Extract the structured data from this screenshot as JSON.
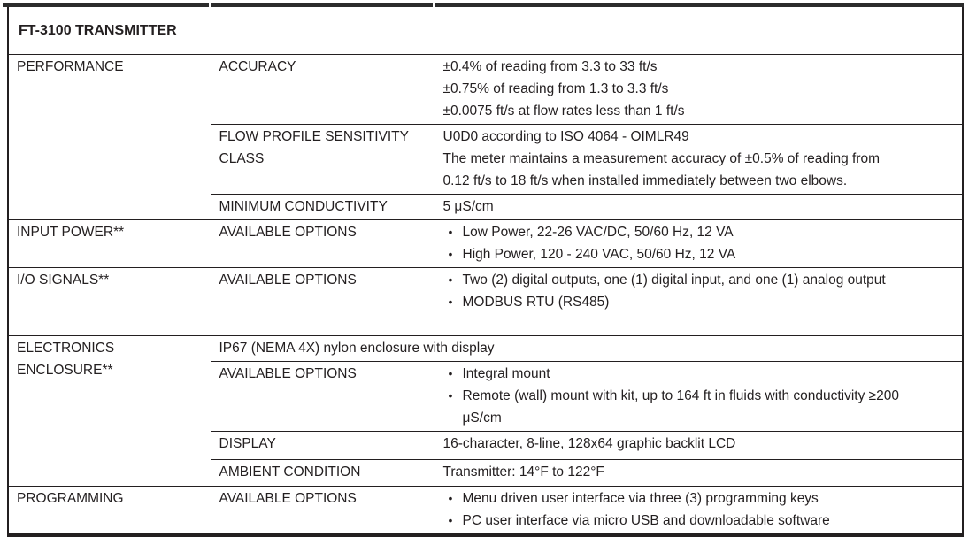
{
  "colors": {
    "border": "#231f20",
    "text": "#231f20",
    "crop_bar": "#2c2c2c",
    "background": "#ffffff"
  },
  "table": {
    "title": "FT-3100 TRANSMITTER",
    "performance": {
      "label": "PERFORMANCE",
      "accuracy": {
        "label": "ACCURACY",
        "line1": "±0.4% of reading from 3.3 to 33 ft/s",
        "line2": "±0.75% of reading from 1.3 to 3.3 ft/s",
        "line3": "±0.0075 ft/s at flow rates less than 1 ft/s"
      },
      "flow_profile": {
        "label": "FLOW PROFILE SENSITIVITY CLASS",
        "line1": "U0D0 according to ISO 4064 - OIMLR49",
        "line2": "The meter maintains a measurement accuracy of ±0.5% of reading from 0.12 ft/s to 18 ft/s when installed immediately between two elbows."
      },
      "min_conductivity": {
        "label": "MINIMUM CONDUCTIVITY",
        "value": "5 μS/cm"
      }
    },
    "input_power": {
      "label": "INPUT POWER**",
      "options_label": "AVAILABLE OPTIONS",
      "bullet1": "Low Power, 22-26 VAC/DC, 50/60 Hz, 12 VA",
      "bullet2": "High Power, 120 - 240 VAC, 50/60 Hz, 12 VA"
    },
    "io_signals": {
      "label": "I/O SIGNALS**",
      "options_label": "AVAILABLE OPTIONS",
      "bullet1": "Two (2) digital outputs, one (1) digital input, and one (1) analog output",
      "bullet2": "MODBUS RTU (RS485)"
    },
    "enclosure": {
      "label": "ELECTRONICS ENCLOSURE**",
      "spanning_value": "IP67 (NEMA 4X) nylon enclosure with display",
      "options_label": "AVAILABLE OPTIONS",
      "bullet1": "Integral mount",
      "bullet2": "Remote (wall) mount with kit, up to 164 ft in fluids with conductivity ≥200 μS/cm",
      "display": {
        "label": "DISPLAY",
        "value": "16-character, 8-line, 128x64 graphic backlit LCD"
      },
      "ambient": {
        "label": "AMBIENT CONDITION",
        "value": "Transmitter: 14°F to 122°F"
      }
    },
    "programming": {
      "label": "PROGRAMMING",
      "options_label": "AVAILABLE OPTIONS",
      "bullet1": "Menu driven user interface via three (3) programming keys",
      "bullet2": "PC user interface via micro USB and downloadable software"
    }
  }
}
